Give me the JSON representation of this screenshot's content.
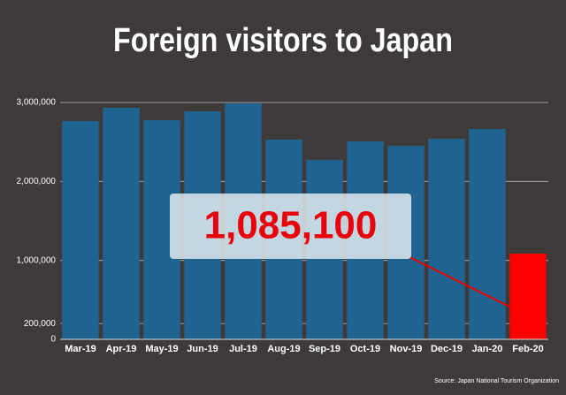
{
  "chart_data": {
    "type": "bar",
    "title": "Foreign visitors to Japan",
    "categories": [
      "Mar-19",
      "Apr-19",
      "May-19",
      "Jun-19",
      "Jul-19",
      "Aug-19",
      "Sep-19",
      "Oct-19",
      "Nov-19",
      "Dec-19",
      "Jan-20",
      "Feb-20"
    ],
    "series": [
      {
        "name": "Foreign visitors",
        "values": [
          2765000,
          2933000,
          2776000,
          2888000,
          2990000,
          2530000,
          2273000,
          2508000,
          2452000,
          2541000,
          2664000,
          1085100
        ],
        "value_labels": [
          null,
          null,
          null,
          null,
          null,
          null,
          null,
          null,
          null,
          null,
          null,
          "1,085,100"
        ],
        "colors": [
          "#1f6391",
          "#1f6391",
          "#1f6391",
          "#1f6391",
          "#1f6391",
          "#1f6391",
          "#1f6391",
          "#1f6391",
          "#1f6391",
          "#1f6391",
          "#1f6391",
          "#ff0000"
        ]
      }
    ],
    "ylim": [
      0,
      3000000
    ],
    "yticks": [
      0,
      {
        "value": 200000,
        "label": "200,000"
      },
      {
        "value": 1000000,
        "label": "1,000,000"
      },
      {
        "value": 2000000,
        "label": "2,000,000"
      },
      {
        "value": 3000000,
        "label": "3,000,000"
      }
    ],
    "grid": true,
    "source": "Source: Japan National Tourism Organization"
  }
}
